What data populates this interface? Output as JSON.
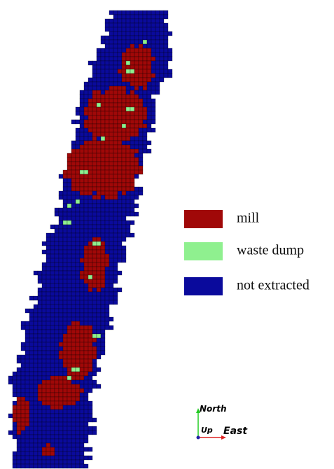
{
  "legend": {
    "items": [
      {
        "label": "mill",
        "color": "#a00808"
      },
      {
        "label": "waste dump",
        "color": "#8ff08f"
      },
      {
        "label": "not extracted",
        "color": "#0a0a9c"
      }
    ]
  },
  "axes": {
    "north": "North",
    "up": "Up",
    "east": "East"
  }
}
